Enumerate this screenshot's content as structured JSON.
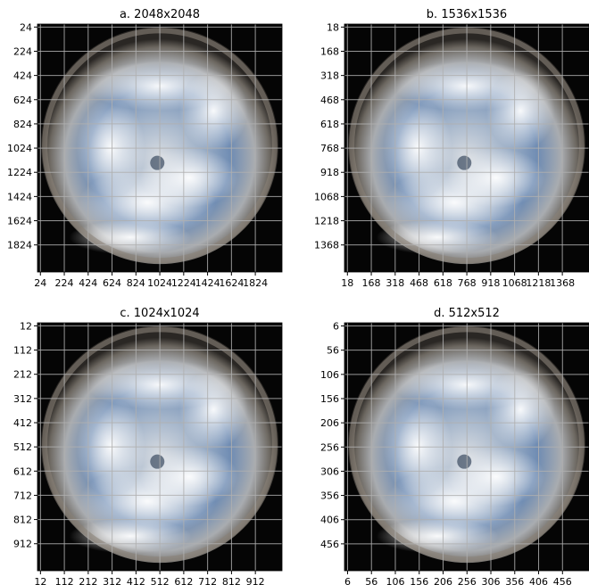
{
  "chart_data": [
    {
      "type": "image",
      "title": "a. 2048x2048",
      "xlim": [
        -0.5,
        2047.5
      ],
      "ylim": [
        2047.5,
        -0.5
      ],
      "xticks": [
        24,
        224,
        424,
        624,
        824,
        1024,
        1224,
        1424,
        1624,
        1824
      ],
      "yticks": [
        24,
        224,
        424,
        624,
        824,
        1024,
        1224,
        1424,
        1624,
        1824
      ],
      "grid": true
    },
    {
      "type": "image",
      "title": "b. 1536x1536",
      "xlim": [
        -0.5,
        1535.5
      ],
      "ylim": [
        1535.5,
        -0.5
      ],
      "xticks": [
        18,
        168,
        318,
        468,
        618,
        768,
        918,
        1068,
        1218,
        1368
      ],
      "yticks": [
        18,
        168,
        318,
        468,
        618,
        768,
        918,
        1068,
        1218,
        1368
      ],
      "grid": true
    },
    {
      "type": "image",
      "title": "c. 1024x1024",
      "xlim": [
        -0.5,
        1023.5
      ],
      "ylim": [
        1023.5,
        -0.5
      ],
      "xticks": [
        12,
        112,
        212,
        312,
        412,
        512,
        612,
        712,
        812,
        912
      ],
      "yticks": [
        12,
        112,
        212,
        312,
        412,
        512,
        612,
        712,
        812,
        912
      ],
      "grid": true
    },
    {
      "type": "image",
      "title": "d. 512x512",
      "xlim": [
        -0.5,
        511.5
      ],
      "ylim": [
        511.5,
        -0.5
      ],
      "xticks": [
        6,
        56,
        106,
        156,
        206,
        256,
        306,
        356,
        406,
        456
      ],
      "yticks": [
        6,
        56,
        106,
        156,
        206,
        256,
        306,
        356,
        406,
        456
      ],
      "grid": true
    }
  ]
}
